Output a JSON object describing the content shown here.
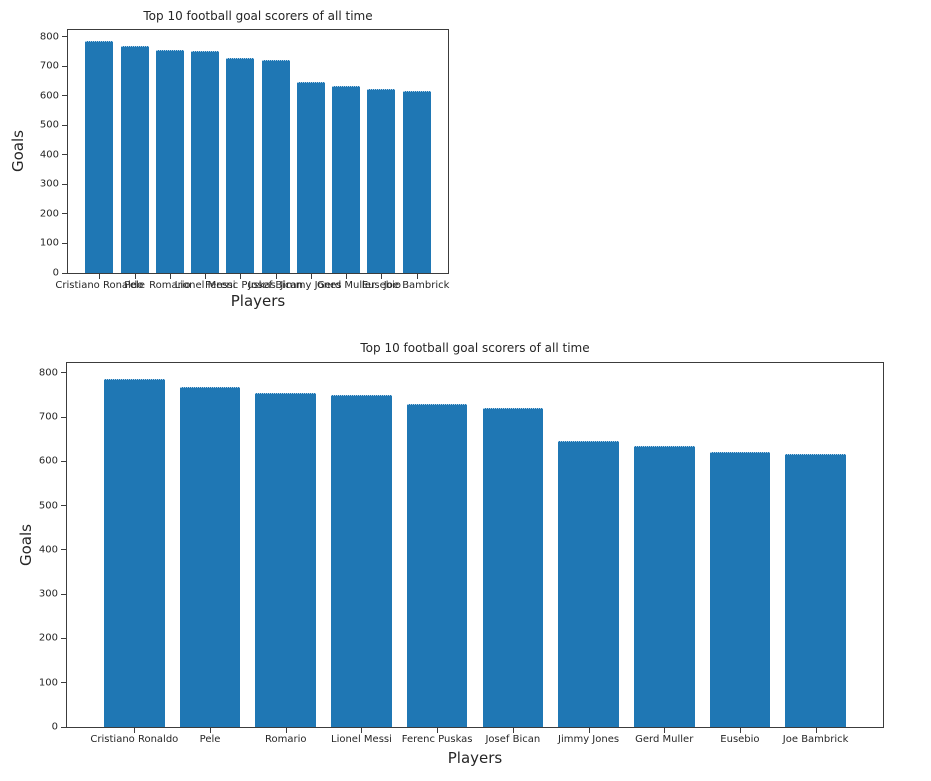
{
  "style": {
    "background": "#ffffff",
    "bar_color": "#1f77b4",
    "bar_top_edge_color": "#aacde6",
    "axis_color": "#3c3c3c",
    "text_color": "#262626"
  },
  "chart_data": [
    {
      "type": "bar",
      "title": "Top 10 football goal scorers of all time",
      "xlabel": "Players",
      "ylabel": "Goals",
      "categories": [
        "Cristiano Ronaldo",
        "Pele",
        "Romario",
        "Lionel Messi",
        "Ferenc Puskas",
        "Josef Bican",
        "Jimmy Jones",
        "Gerd Muller",
        "Eusebio",
        "Joe Bambrick"
      ],
      "values": [
        785,
        767,
        755,
        750,
        729,
        720,
        647,
        634,
        622,
        616
      ],
      "yticks": [
        0,
        100,
        200,
        300,
        400,
        500,
        600,
        700,
        800
      ],
      "ylim": [
        0,
        822
      ],
      "grid": false,
      "legend": false,
      "bar_color": "#1f77b4",
      "layout_hint": "small axes at top-left; x tick labels overlap illegibly"
    },
    {
      "type": "bar",
      "title": "Top 10 football goal scorers of all time",
      "xlabel": "Players",
      "ylabel": "Goals",
      "categories": [
        "Cristiano Ronaldo",
        "Pele",
        "Romario",
        "Lionel Messi",
        "Ferenc Puskas",
        "Josef Bican",
        "Jimmy Jones",
        "Gerd Muller",
        "Eusebio",
        "Joe Bambrick"
      ],
      "values": [
        785,
        767,
        755,
        750,
        729,
        720,
        647,
        634,
        622,
        616
      ],
      "yticks": [
        0,
        100,
        200,
        300,
        400,
        500,
        600,
        700,
        800
      ],
      "ylim": [
        0,
        822
      ],
      "grid": false,
      "legend": false,
      "bar_color": "#1f77b4",
      "layout_hint": "wide axes at bottom spanning full width; x tick labels readable"
    }
  ]
}
